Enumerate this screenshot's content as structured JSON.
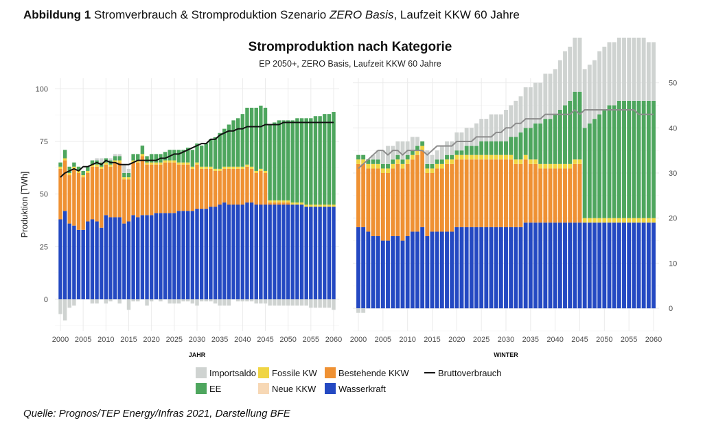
{
  "caption": {
    "label": "Abbildung 1",
    "text_before": " Stromverbrauch & Stromproduktion Szenario ",
    "text_italic": "ZERO Basis",
    "text_after": ", Laufzeit KKW 60 Jahre"
  },
  "source": "Quelle: Prognos/TEP Energy/Infras 2021, Darstellung BFE",
  "colors": {
    "Importsaldo": "#cfd3d1",
    "EE": "#4ea65e",
    "Fossile KW": "#f0d544",
    "Neue KKW": "#f7d8b5",
    "Bestehende KKW": "#ef9133",
    "Wasserkraft": "#2449c2",
    "Bruttoverbrauch_left": "#111111",
    "Bruttoverbrauch_right": "#8c8c8c"
  },
  "chart_data": {
    "type": "bar",
    "title": "Stromproduktion nach Kategorie",
    "subtitle": "EP 2050+, ZERO Basis, Laufzeit KKW 60 Jahre",
    "legend": {
      "position": "bottom",
      "items": [
        "Importsaldo",
        "EE",
        "Fossile KW",
        "Neue KKW",
        "Bestehende KKW",
        "Wasserkraft",
        "Bruttoverbrauch"
      ]
    },
    "panels": [
      {
        "label": "JAHR",
        "ylabel": "Produktion [TWh]",
        "ylim": [
          -15,
          105
        ],
        "yticks": [
          0,
          25,
          50,
          75,
          100
        ],
        "xticks": [
          2000,
          2005,
          2010,
          2015,
          2020,
          2025,
          2030,
          2035,
          2040,
          2045,
          2050,
          2055,
          2060
        ],
        "x_start": 2000,
        "stack_series": {
          "Wasserkraft": [
            38,
            42,
            36,
            35,
            33,
            33,
            37,
            38,
            37,
            34,
            40,
            39,
            39,
            39,
            36,
            37,
            40,
            39,
            40,
            40,
            40,
            41,
            41,
            41,
            41,
            41,
            42,
            42,
            42,
            42,
            43,
            43,
            43,
            44,
            44,
            45,
            46,
            45,
            45,
            45,
            45,
            46,
            46,
            45,
            45,
            45,
            45,
            45,
            45,
            45,
            45,
            45,
            45,
            45,
            44,
            44,
            44,
            44,
            44,
            44,
            44
          ],
          "Bestehende KKW": [
            24,
            24,
            23,
            27,
            27,
            25,
            23,
            25,
            26,
            28,
            24,
            24,
            26,
            26,
            21,
            20,
            25,
            26,
            28,
            24,
            24,
            23,
            23,
            24,
            24,
            24,
            22,
            22,
            22,
            20,
            21,
            19,
            19,
            18,
            17,
            16,
            16,
            17,
            17,
            17,
            17,
            17,
            16,
            15,
            16,
            15,
            1,
            1,
            1,
            1,
            1,
            0,
            0,
            0,
            0,
            0,
            0,
            0,
            0,
            0,
            0
          ],
          "Neue KKW": [
            0,
            0,
            0,
            0,
            0,
            0,
            0,
            0,
            0,
            0,
            0,
            0,
            0,
            0,
            0,
            0,
            0,
            0,
            0,
            0,
            0,
            0,
            0,
            0,
            0,
            0,
            0,
            0,
            0,
            0,
            0,
            0,
            0,
            0,
            0,
            0,
            0,
            0,
            0,
            0,
            0,
            0,
            0,
            0,
            0,
            0,
            0,
            0,
            0,
            0,
            0,
            0,
            0,
            0,
            0,
            0,
            0,
            0,
            0,
            0,
            0
          ],
          "Fossile KW": [
            1,
            1,
            1,
            1,
            1,
            1,
            1,
            1,
            1,
            1,
            1,
            1,
            1,
            1,
            1,
            1,
            1,
            1,
            1,
            1,
            1,
            1,
            1,
            1,
            1,
            1,
            1,
            1,
            1,
            1,
            1,
            1,
            1,
            1,
            1,
            1,
            1,
            1,
            1,
            1,
            1,
            1,
            1,
            1,
            1,
            1,
            1,
            1,
            1,
            1,
            1,
            1,
            1,
            1,
            1,
            1,
            1,
            1,
            1,
            1,
            1
          ],
          "EE": [
            2,
            4,
            3,
            2,
            2,
            2,
            2,
            2,
            2,
            2,
            2,
            2,
            2,
            2,
            2,
            2,
            3,
            3,
            4,
            3,
            4,
            4,
            4,
            4,
            5,
            5,
            6,
            6,
            7,
            8,
            9,
            10,
            11,
            13,
            15,
            17,
            18,
            20,
            22,
            23,
            25,
            27,
            28,
            30,
            30,
            30,
            36,
            37,
            38,
            38,
            38,
            39,
            40,
            40,
            41,
            41,
            42,
            42,
            43,
            43,
            44
          ],
          "Importsaldo": [
            0,
            0,
            0,
            0,
            0,
            0,
            0,
            0,
            1,
            2,
            0,
            1,
            1,
            1,
            4,
            2,
            0,
            0,
            0,
            0,
            0,
            0,
            0,
            0,
            0,
            0,
            0,
            0,
            0,
            0,
            0,
            0,
            0,
            0,
            0,
            0,
            0,
            0,
            0,
            0,
            0,
            0,
            0,
            0,
            0,
            0,
            0,
            0,
            0,
            0,
            0,
            0,
            0,
            0,
            0,
            0,
            0,
            0,
            0,
            0,
            0
          ],
          "Importsaldo_negative": [
            -7,
            -10,
            -4,
            -3,
            0,
            0,
            0,
            -2,
            -2,
            0,
            -2,
            -1,
            0,
            -2,
            0,
            -5,
            -1,
            -1,
            0,
            -3,
            -1,
            0,
            -1,
            0,
            -2,
            -2,
            -2,
            -1,
            -1,
            -2,
            -3,
            -1,
            -1,
            -1,
            -2,
            -3,
            -3,
            -3,
            0,
            -1,
            -1,
            -1,
            -1,
            -2,
            -2,
            -2,
            -3,
            -3,
            -3,
            -3,
            -3,
            -3,
            -3,
            -3,
            -3,
            -4,
            -4,
            -4,
            -4,
            -4,
            -5
          ]
        },
        "line": {
          "name": "Bruttoverbrauch",
          "values": [
            58,
            60,
            61,
            62,
            61,
            63,
            63,
            64,
            65,
            64,
            66,
            65,
            65,
            64,
            64,
            64,
            65,
            66,
            66,
            66,
            66,
            66,
            67,
            67,
            68,
            69,
            69,
            70,
            71,
            72,
            73,
            74,
            74,
            76,
            76,
            78,
            79,
            80,
            80,
            81,
            81,
            82,
            82,
            82,
            82,
            83,
            83,
            83,
            83,
            84,
            84,
            84,
            84,
            84,
            84,
            84,
            84,
            84,
            84,
            84,
            84
          ]
        }
      },
      {
        "label": "WINTER",
        "ylim": [
          -5,
          51
        ],
        "yticks": [
          0,
          10,
          20,
          30,
          40,
          50
        ],
        "axis_side": "right",
        "xticks": [
          2000,
          2005,
          2010,
          2015,
          2020,
          2025,
          2030,
          2035,
          2040,
          2045,
          2050,
          2055,
          2060
        ],
        "x_start": 2000,
        "stack_series": {
          "Wasserkraft": [
            18,
            18,
            17,
            16,
            16,
            15,
            15,
            16,
            16,
            15,
            16,
            17,
            17,
            18,
            16,
            17,
            17,
            17,
            17,
            17,
            18,
            18,
            18,
            18,
            18,
            18,
            18,
            18,
            18,
            18,
            18,
            18,
            18,
            18,
            19,
            19,
            19,
            19,
            19,
            19,
            19,
            19,
            19,
            19,
            19,
            19,
            19,
            19,
            19,
            19,
            19,
            19,
            19,
            19,
            19,
            19,
            19,
            19,
            19,
            19,
            19
          ],
          "Bestehende KKW": [
            14,
            14,
            14,
            15,
            15,
            15,
            15,
            15,
            16,
            16,
            16,
            16,
            17,
            17,
            14,
            13,
            14,
            14,
            15,
            15,
            15,
            15,
            15,
            15,
            15,
            15,
            15,
            15,
            15,
            15,
            15,
            15,
            14,
            14,
            14,
            13,
            13,
            12,
            12,
            12,
            12,
            12,
            12,
            12,
            13,
            13,
            0,
            0,
            0,
            0,
            0,
            0,
            0,
            0,
            0,
            0,
            0,
            0,
            0,
            0,
            0
          ],
          "Neue KKW": [
            0,
            0,
            0,
            0,
            0,
            0,
            0,
            0,
            0,
            0,
            0,
            0,
            0,
            0,
            0,
            0,
            0,
            0,
            0,
            0,
            0,
            0,
            0,
            0,
            0,
            0,
            0,
            0,
            0,
            0,
            0,
            0,
            0,
            0,
            0,
            0,
            0,
            0,
            0,
            0,
            0,
            0,
            0,
            0,
            0,
            0,
            0,
            0,
            0,
            0,
            0,
            0,
            0,
            0,
            0,
            0,
            0,
            0,
            0,
            0,
            0
          ],
          "Fossile KW": [
            1,
            1,
            1,
            1,
            1,
            1,
            1,
            1,
            1,
            1,
            1,
            1,
            1,
            1,
            1,
            1,
            1,
            1,
            1,
            1,
            1,
            1,
            1,
            1,
            1,
            1,
            1,
            1,
            1,
            1,
            1,
            1,
            1,
            1,
            1,
            1,
            1,
            1,
            1,
            1,
            1,
            1,
            1,
            1,
            1,
            1,
            1,
            1,
            1,
            1,
            1,
            1,
            1,
            1,
            1,
            1,
            1,
            1,
            1,
            1,
            1
          ],
          "EE": [
            1,
            1,
            1,
            1,
            1,
            1,
            1,
            1,
            1,
            1,
            1,
            1,
            1,
            1,
            1,
            1,
            1,
            1,
            1,
            1,
            1,
            1,
            2,
            2,
            2,
            3,
            3,
            3,
            3,
            3,
            3,
            4,
            5,
            6,
            6,
            7,
            8,
            9,
            10,
            10,
            11,
            12,
            13,
            14,
            15,
            15,
            20,
            21,
            22,
            23,
            24,
            25,
            25,
            26,
            26,
            26,
            26,
            26,
            26,
            26,
            26
          ],
          "Importsaldo": [
            0,
            0,
            0,
            1,
            2,
            3,
            4,
            3,
            3,
            4,
            3,
            3,
            2,
            0,
            3,
            2,
            2,
            3,
            3,
            3,
            4,
            4,
            4,
            4,
            5,
            5,
            5,
            6,
            6,
            6,
            7,
            7,
            8,
            8,
            9,
            9,
            9,
            9,
            10,
            10,
            10,
            11,
            12,
            12,
            12,
            12,
            13,
            13,
            13,
            14,
            14,
            14,
            14,
            14,
            14,
            14,
            14,
            14,
            14,
            13,
            13
          ],
          "Importsaldo_negative": [
            -1,
            -1,
            0,
            0,
            0,
            0,
            0,
            0,
            0,
            0,
            0,
            0,
            0,
            0,
            0,
            0,
            0,
            0,
            0,
            0,
            0,
            0,
            0,
            0,
            0,
            0,
            0,
            0,
            0,
            0,
            0,
            0,
            0,
            0,
            0,
            0,
            0,
            0,
            0,
            0,
            0,
            0,
            0,
            0,
            0,
            0,
            0,
            0,
            0,
            0,
            0,
            0,
            0,
            0,
            0,
            0,
            0,
            0,
            0,
            0,
            0
          ]
        },
        "line": {
          "name": "Bruttoverbrauch",
          "values": [
            31,
            32,
            33,
            34,
            35,
            35,
            34,
            35,
            35,
            34,
            35,
            35,
            35,
            35,
            34,
            35,
            36,
            36,
            36,
            36,
            37,
            37,
            37,
            37,
            38,
            38,
            38,
            38,
            39,
            39,
            40,
            40,
            41,
            41,
            42,
            42,
            42,
            42,
            43,
            43,
            43,
            43,
            43,
            43,
            44,
            43,
            44,
            44,
            44,
            44,
            44,
            44,
            44,
            44,
            44,
            44,
            44,
            43,
            43,
            43,
            43
          ]
        }
      }
    ]
  }
}
